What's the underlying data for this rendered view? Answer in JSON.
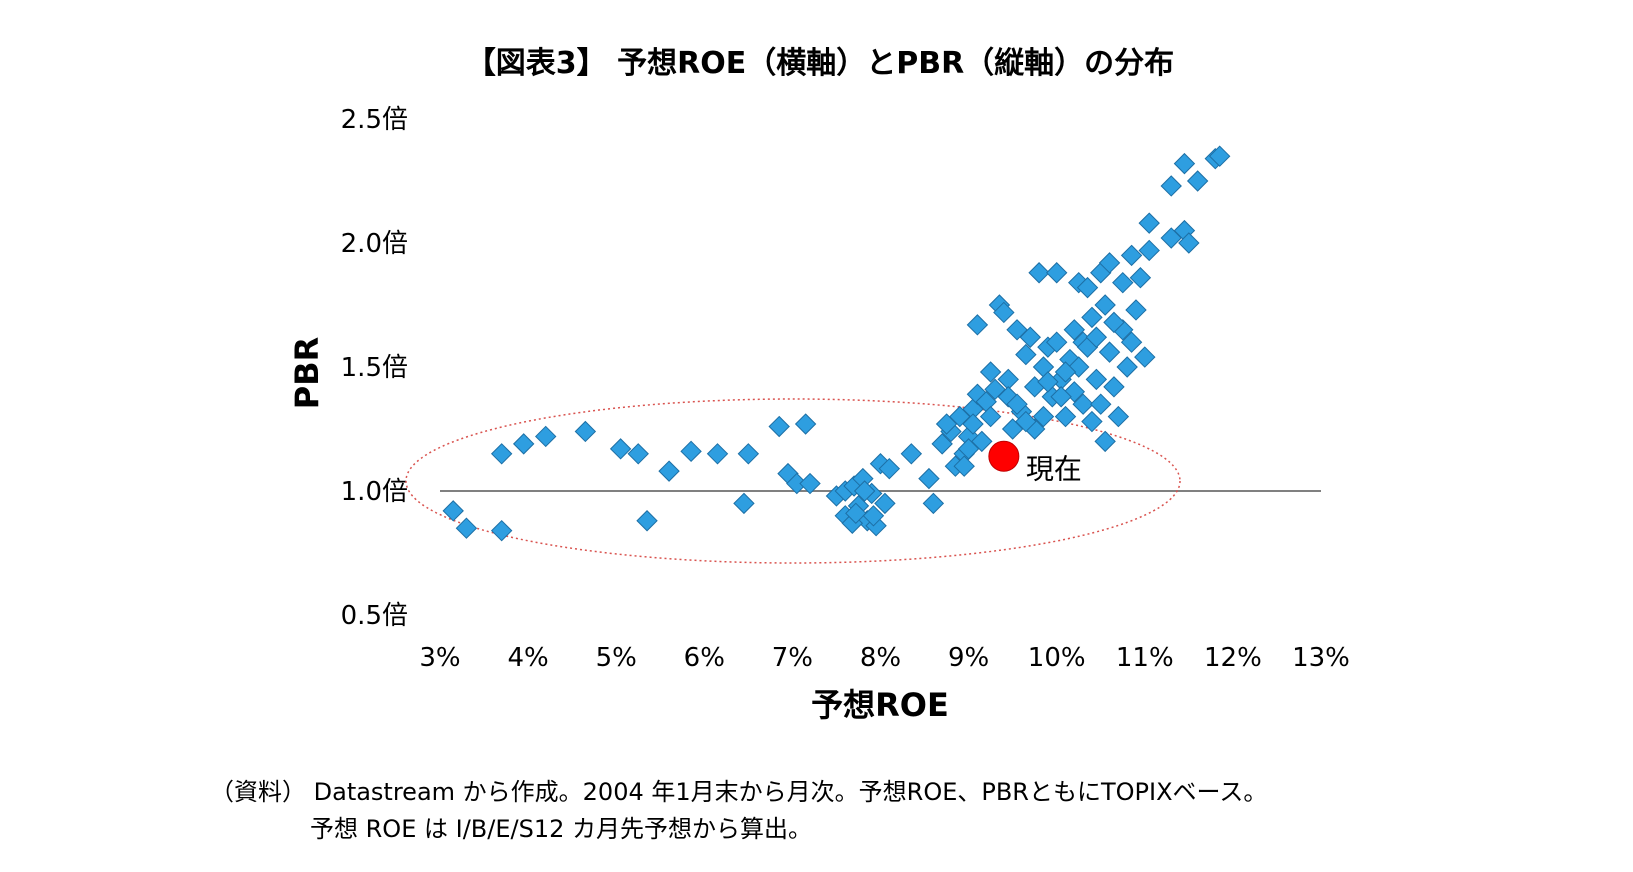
{
  "chart_data": {
    "type": "scatter",
    "title": "【図表3】 予想ROE（横軸）とPBR（縦軸）の分布",
    "xlabel": "予想ROE",
    "ylabel": "PBR",
    "xlim": [
      3,
      13
    ],
    "ylim": [
      0.5,
      2.5
    ],
    "x_ticks": [
      3,
      4,
      5,
      6,
      7,
      8,
      9,
      10,
      11,
      12,
      13
    ],
    "x_tick_labels": [
      "3%",
      "4%",
      "5%",
      "6%",
      "7%",
      "8%",
      "9%",
      "10%",
      "11%",
      "12%",
      "13%"
    ],
    "y_ticks": [
      0.5,
      1.0,
      1.5,
      2.0,
      2.5
    ],
    "y_tick_labels": [
      "0.5倍",
      "1.0倍",
      "1.5倍",
      "2.0倍",
      "2.5倍"
    ],
    "reference_line_y": 1.0,
    "grid": false,
    "marker_color": "#2e9ee0",
    "highlight_color": "#ff0000",
    "ellipse_color": "#d9534f",
    "current_point": {
      "label": "現在",
      "x": 9.4,
      "y": 1.14
    },
    "points": [
      [
        3.15,
        0.92
      ],
      [
        3.3,
        0.85
      ],
      [
        3.7,
        0.84
      ],
      [
        3.7,
        1.15
      ],
      [
        3.95,
        1.19
      ],
      [
        4.2,
        1.22
      ],
      [
        4.65,
        1.24
      ],
      [
        5.05,
        1.17
      ],
      [
        5.25,
        1.15
      ],
      [
        5.35,
        0.88
      ],
      [
        5.6,
        1.08
      ],
      [
        5.85,
        1.16
      ],
      [
        6.15,
        1.15
      ],
      [
        6.45,
        0.95
      ],
      [
        6.5,
        1.15
      ],
      [
        6.85,
        1.26
      ],
      [
        6.95,
        1.07
      ],
      [
        7.05,
        1.03
      ],
      [
        7.15,
        1.27
      ],
      [
        7.2,
        1.03
      ],
      [
        7.5,
        0.98
      ],
      [
        7.6,
        1.0
      ],
      [
        7.6,
        0.9
      ],
      [
        7.7,
        1.02
      ],
      [
        7.75,
        0.94
      ],
      [
        7.8,
        1.05
      ],
      [
        7.85,
        0.88
      ],
      [
        7.9,
        0.99
      ],
      [
        7.95,
        0.86
      ],
      [
        8.0,
        1.11
      ],
      [
        8.05,
        0.95
      ],
      [
        8.1,
        1.09
      ],
      [
        7.68,
        0.87
      ],
      [
        7.82,
        1.0
      ],
      [
        7.72,
        0.91
      ],
      [
        7.92,
        0.9
      ],
      [
        8.35,
        1.15
      ],
      [
        8.55,
        1.05
      ],
      [
        8.6,
        0.95
      ],
      [
        8.7,
        1.19
      ],
      [
        8.8,
        1.24
      ],
      [
        8.85,
        1.1
      ],
      [
        8.9,
        1.3
      ],
      [
        8.95,
        1.15
      ],
      [
        9.0,
        1.22
      ],
      [
        9.05,
        1.33
      ],
      [
        9.05,
        1.27
      ],
      [
        9.1,
        1.39
      ],
      [
        9.15,
        1.2
      ],
      [
        9.2,
        1.36
      ],
      [
        9.25,
        1.3
      ],
      [
        9.1,
        1.67
      ],
      [
        9.25,
        1.48
      ],
      [
        9.35,
        1.75
      ],
      [
        9.4,
        1.72
      ],
      [
        9.45,
        1.45
      ],
      [
        9.45,
        1.38
      ],
      [
        9.5,
        1.25
      ],
      [
        9.55,
        1.65
      ],
      [
        9.6,
        1.32
      ],
      [
        9.65,
        1.55
      ],
      [
        9.7,
        1.62
      ],
      [
        9.75,
        1.42
      ],
      [
        9.75,
        1.25
      ],
      [
        9.8,
        1.88
      ],
      [
        9.85,
        1.5
      ],
      [
        9.9,
        1.58
      ],
      [
        9.95,
        1.38
      ],
      [
        10.0,
        1.88
      ],
      [
        10.0,
        1.6
      ],
      [
        10.05,
        1.45
      ],
      [
        10.1,
        1.3
      ],
      [
        10.15,
        1.53
      ],
      [
        10.2,
        1.65
      ],
      [
        10.2,
        1.4
      ],
      [
        10.25,
        1.84
      ],
      [
        10.3,
        1.35
      ],
      [
        10.3,
        1.6
      ],
      [
        10.35,
        1.82
      ],
      [
        10.4,
        1.7
      ],
      [
        10.4,
        1.28
      ],
      [
        10.45,
        1.45
      ],
      [
        10.5,
        1.35
      ],
      [
        10.5,
        1.88
      ],
      [
        10.55,
        1.75
      ],
      [
        10.55,
        1.2
      ],
      [
        10.6,
        1.92
      ],
      [
        10.6,
        1.56
      ],
      [
        10.65,
        1.42
      ],
      [
        10.7,
        1.3
      ],
      [
        10.75,
        1.84
      ],
      [
        10.75,
        1.65
      ],
      [
        10.8,
        1.5
      ],
      [
        10.85,
        1.95
      ],
      [
        10.9,
        1.73
      ],
      [
        10.95,
        1.86
      ],
      [
        11.0,
        1.54
      ],
      [
        11.05,
        2.08
      ],
      [
        11.05,
        1.97
      ],
      [
        11.3,
        2.02
      ],
      [
        11.45,
        2.05
      ],
      [
        11.5,
        2.0
      ],
      [
        11.3,
        2.23
      ],
      [
        11.45,
        2.32
      ],
      [
        11.6,
        2.25
      ],
      [
        11.8,
        2.34
      ],
      [
        11.85,
        2.35
      ],
      [
        9.3,
        1.41
      ],
      [
        9.55,
        1.35
      ],
      [
        9.65,
        1.28
      ],
      [
        9.85,
        1.3
      ],
      [
        10.05,
        1.38
      ],
      [
        10.25,
        1.5
      ],
      [
        10.35,
        1.58
      ],
      [
        10.45,
        1.62
      ],
      [
        10.65,
        1.68
      ],
      [
        10.85,
        1.6
      ],
      [
        9.9,
        1.44
      ],
      [
        10.1,
        1.48
      ],
      [
        8.95,
        1.1
      ],
      [
        9.0,
        1.17
      ],
      [
        8.75,
        1.27
      ]
    ]
  },
  "footnote": {
    "line1": "（資料） Datastream から作成。2004 年1月末から月次。予想ROE、PBRともにTOPIXベース。",
    "line2": "予想 ROE は I/B/E/S12 カ月先予想から算出。"
  }
}
